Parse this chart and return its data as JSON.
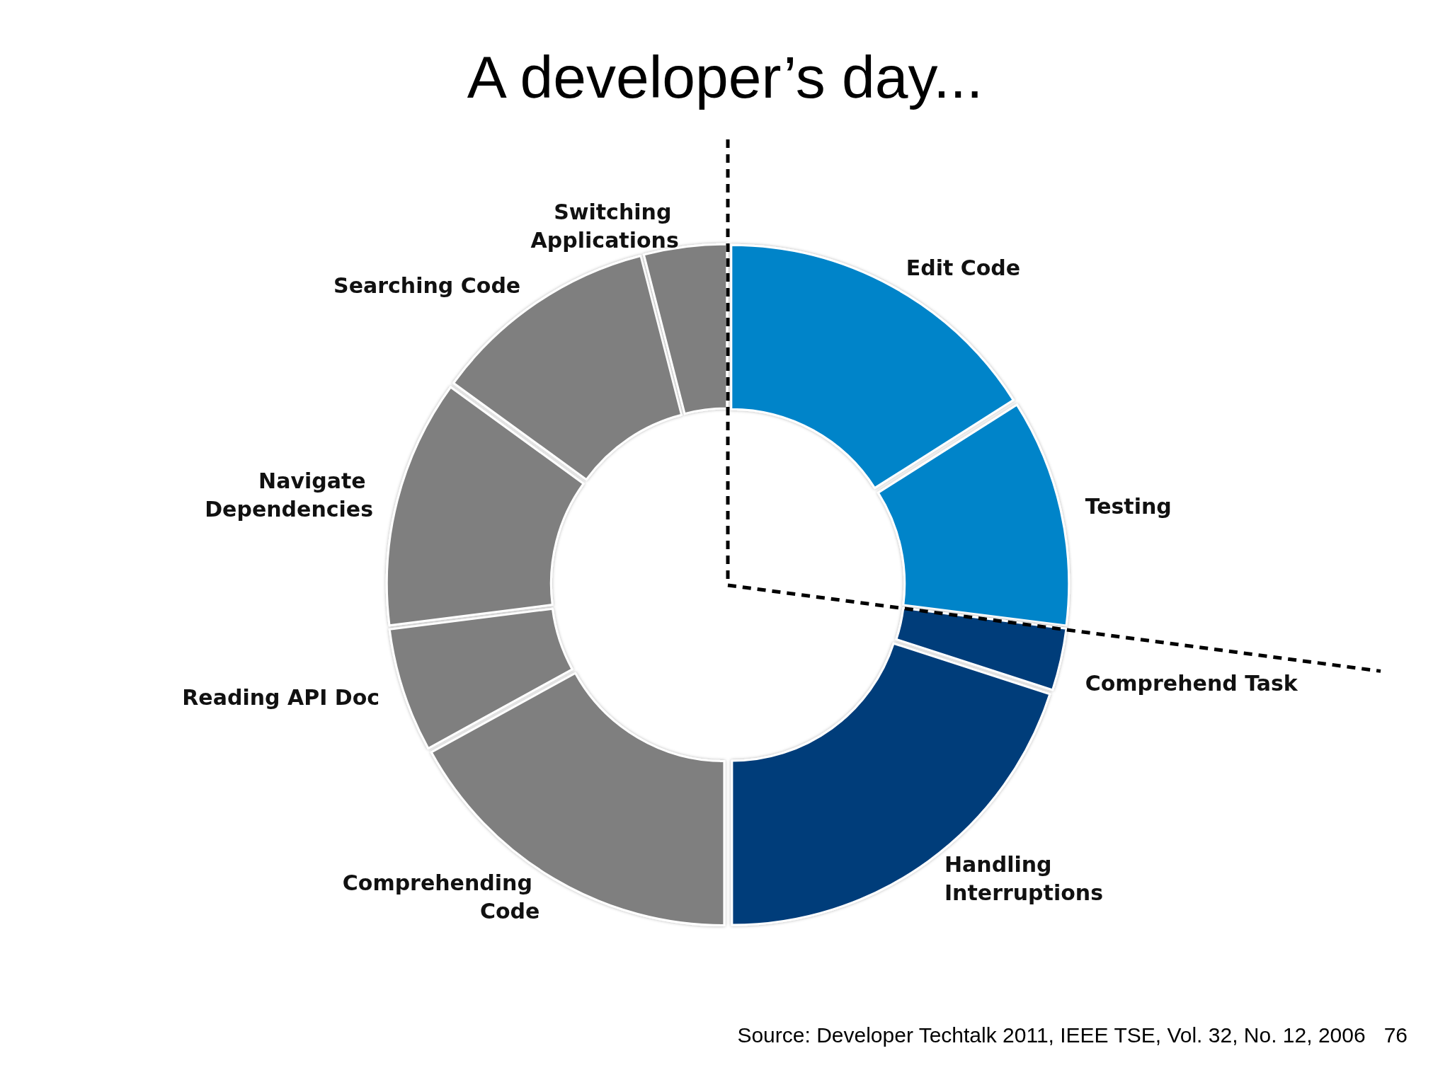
{
  "chart_data": {
    "type": "donut",
    "title": "A developer’s day...",
    "categories": [
      "Edit Code",
      "Testing",
      "Comprehend Task",
      "Handling Interruptions",
      "Comprehending Code",
      "Reading API Doc",
      "Navigate Dependencies",
      "Searching Code",
      "Switching Applications"
    ],
    "values": [
      16,
      11,
      3,
      20,
      17,
      6,
      12,
      11,
      4
    ],
    "colors": [
      "#0084c9",
      "#0084c9",
      "#003d7a",
      "#003d7a",
      "#7f7f7f",
      "#7f7f7f",
      "#7f7f7f",
      "#7f7f7f",
      "#7f7f7f"
    ],
    "annotations": [
      "Source: Developer Techtalk 2011, IEEE TSE, Vol. 32, No. 12, 2006",
      "76"
    ]
  }
}
